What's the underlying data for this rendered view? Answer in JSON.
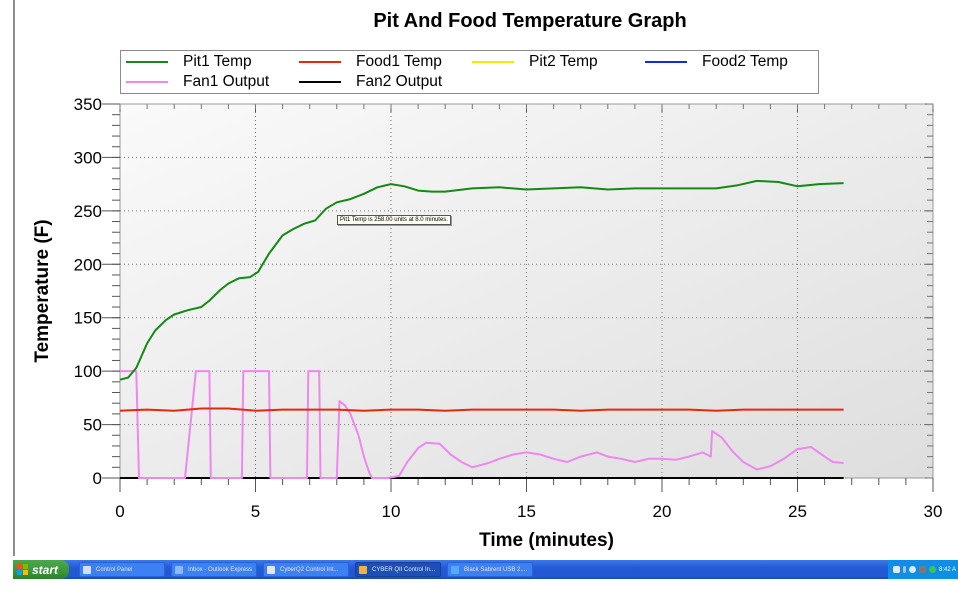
{
  "chart_data": {
    "type": "line",
    "title": "Pit And Food Temperature Graph",
    "xlabel": "Time (minutes)",
    "ylabel": "Temperature (F)",
    "xlim": [
      0,
      30
    ],
    "ylim": [
      0,
      350
    ],
    "xticks": [
      0,
      5,
      10,
      15,
      20,
      25,
      30
    ],
    "yticks": [
      0,
      50,
      100,
      150,
      200,
      250,
      300,
      350
    ],
    "grid": true,
    "legend_position": "top",
    "legend": [
      {
        "name": "Pit1 Temp",
        "color": "#138a13"
      },
      {
        "name": "Food1 Temp",
        "color": "#e8280a"
      },
      {
        "name": "Pit2 Temp",
        "color": "#f2ec00"
      },
      {
        "name": "Food2 Temp",
        "color": "#0a2ee0"
      },
      {
        "name": "Fan1 Output",
        "color": "#ee88ee"
      },
      {
        "name": "Fan2 Output",
        "color": "#000000"
      }
    ],
    "series": [
      {
        "name": "Pit1 Temp",
        "color": "#138a13",
        "x": [
          0,
          0.3,
          0.6,
          1.0,
          1.3,
          1.7,
          2.0,
          2.5,
          3.0,
          3.3,
          3.7,
          4.0,
          4.4,
          4.8,
          5.1,
          5.5,
          6.0,
          6.4,
          6.8,
          7.2,
          7.6,
          8.0,
          8.5,
          9.0,
          9.5,
          10.0,
          10.5,
          11.0,
          11.5,
          12.0,
          13.0,
          14.0,
          15.0,
          16.0,
          17.0,
          18.0,
          19.0,
          20.0,
          21.0,
          22.0,
          22.8,
          23.5,
          24.3,
          25.0,
          25.8,
          26.7
        ],
        "y": [
          92,
          94,
          103,
          126,
          138,
          148,
          153,
          157,
          160,
          166,
          176,
          182,
          187,
          188,
          193,
          210,
          227,
          233,
          238,
          241,
          252,
          258,
          261,
          266,
          272,
          275,
          273,
          269,
          268,
          268,
          271,
          272,
          270,
          271,
          272,
          270,
          271,
          271,
          271,
          271,
          274,
          278,
          277,
          273,
          275,
          276
        ]
      },
      {
        "name": "Food1 Temp",
        "color": "#e8280a",
        "x": [
          0,
          1,
          2,
          3,
          4,
          5,
          6,
          7,
          8,
          9,
          10,
          11,
          12,
          13,
          14,
          15,
          16,
          17,
          18,
          19,
          20,
          21,
          22,
          23,
          24,
          25,
          26,
          26.7
        ],
        "y": [
          63,
          64,
          63,
          65,
          65,
          63,
          64,
          64,
          64,
          63,
          64,
          64,
          63,
          64,
          64,
          64,
          64,
          63,
          64,
          64,
          64,
          64,
          63,
          64,
          64,
          64,
          64,
          64
        ]
      },
      {
        "name": "Pit2 Temp",
        "color": "#f2ec00",
        "x": [],
        "y": []
      },
      {
        "name": "Food2 Temp",
        "color": "#0a2ee0",
        "x": [],
        "y": []
      },
      {
        "name": "Fan1 Output",
        "color": "#ee88ee",
        "x": [
          0,
          0.6,
          0.7,
          1.0,
          2.4,
          2.8,
          3.2,
          3.3,
          3.35,
          4.5,
          4.55,
          5.5,
          5.55,
          6.9,
          6.95,
          7.35,
          7.4,
          8.0,
          8.1,
          8.3,
          8.5,
          8.8,
          9.0,
          9.2,
          9.3,
          9.9,
          10.3,
          10.6,
          11.0,
          11.3,
          11.8,
          12.2,
          12.6,
          13.0,
          13.6,
          14.0,
          14.5,
          15.0,
          15.5,
          16.0,
          16.5,
          17.0,
          17.6,
          18.0,
          18.5,
          19.0,
          19.5,
          20.0,
          20.5,
          21.0,
          21.5,
          21.8,
          21.85,
          22.2,
          22.6,
          23.0,
          23.5,
          24.0,
          24.5,
          25.0,
          25.5,
          26.0,
          26.3,
          26.7
        ],
        "y": [
          100,
          100,
          0,
          0,
          0,
          100,
          100,
          100,
          0,
          0,
          100,
          100,
          0,
          0,
          100,
          100,
          0,
          0,
          72,
          68,
          60,
          40,
          20,
          5,
          0,
          0,
          2,
          15,
          28,
          33,
          32,
          22,
          15,
          10,
          14,
          18,
          22,
          24,
          22,
          18,
          15,
          20,
          24,
          20,
          18,
          15,
          18,
          18,
          17,
          20,
          24,
          20,
          44,
          38,
          25,
          15,
          8,
          11,
          18,
          27,
          29,
          20,
          15,
          14
        ]
      },
      {
        "name": "Fan2 Output",
        "color": "#000000",
        "x": [
          0,
          26.7
        ],
        "y": [
          0,
          0
        ]
      }
    ],
    "annotations": [
      {
        "text": "Pit1 Temp is 258.00 units at 8.0 minutes.",
        "x": 8.0,
        "y": 258
      }
    ]
  },
  "taskbar": {
    "start_label": "start",
    "items": [
      {
        "label": "Control Panel",
        "icon": "control-panel-icon",
        "active": false
      },
      {
        "label": "Inbox - Outlook Express",
        "icon": "outlook-icon",
        "active": false
      },
      {
        "label": "CyberQ2 Control Int...",
        "icon": "window-icon",
        "active": false
      },
      {
        "label": "CYBER QII Control In...",
        "icon": "app-icon",
        "active": true
      },
      {
        "label": "Black Sabrent USB 2....",
        "icon": "ie-icon",
        "active": false
      }
    ],
    "clock": "8:42 A"
  }
}
